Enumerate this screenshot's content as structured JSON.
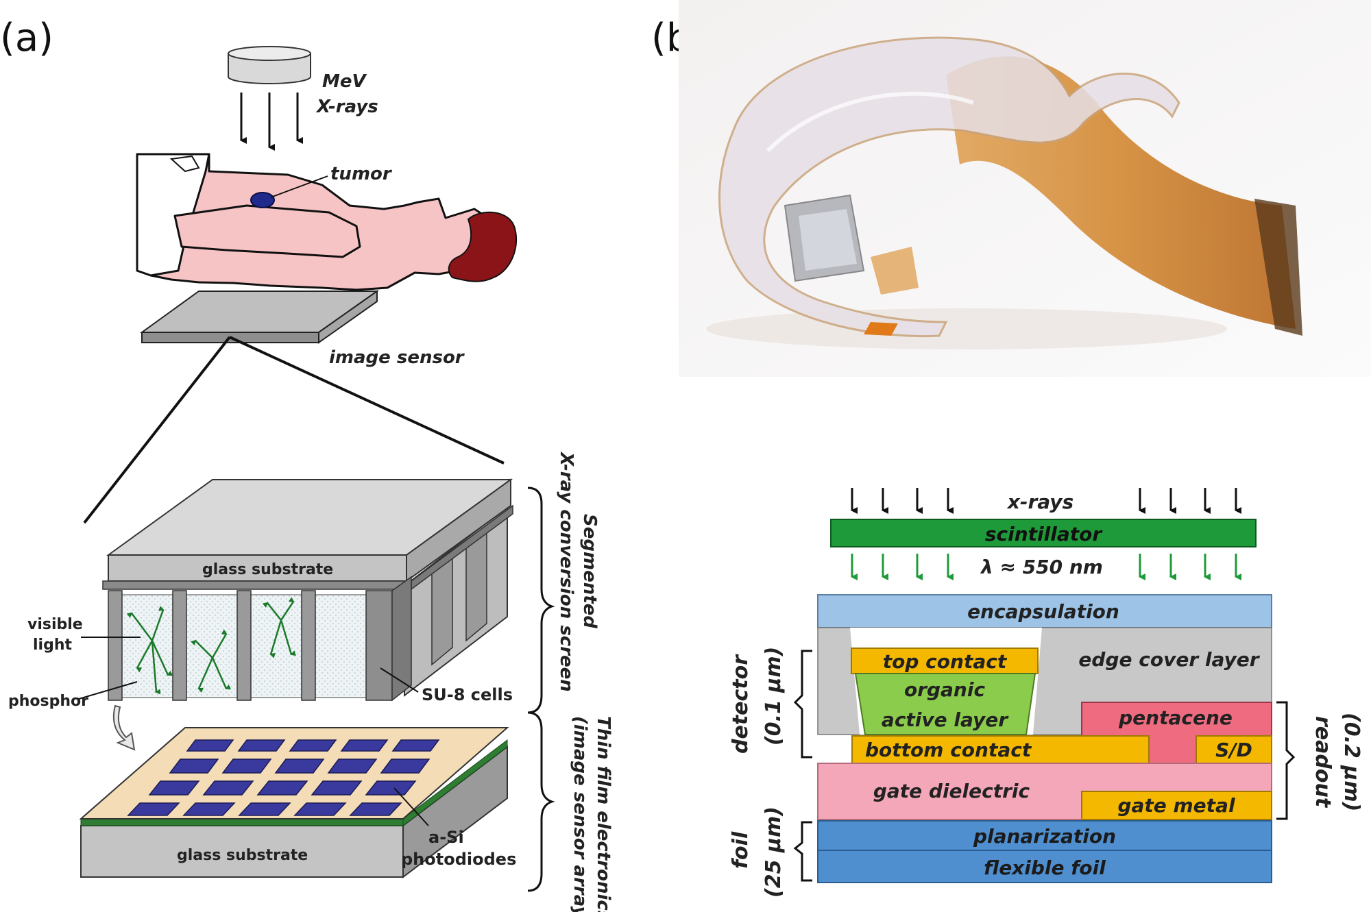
{
  "panel_a": {
    "label": "(a)",
    "source_label_1": "MeV",
    "source_label_2": "X-rays",
    "tumor_label": "tumor",
    "image_sensor_label": "image sensor",
    "top_glass_label": "glass substrate",
    "bottom_glass_label": "glass substrate",
    "visible_light_1": "visible",
    "visible_light_2": "light",
    "phosphor_label": "phosphor",
    "su8_label": "SU-8 cells",
    "asi_label_1": "a-Si",
    "asi_label_2": "photodiodes",
    "conversion_label_1": "Segmented",
    "conversion_label_2": "X-ray conversion screen",
    "thinfilm_label_1": "Thin film electronics",
    "thinfilm_label_2": "(image sensor array)"
  },
  "panel_b": {
    "label": "(b)",
    "xrays": "x-rays",
    "scintillator": "scintillator",
    "wavelength": "λ ≈ 550 nm",
    "encapsulation": "encapsulation",
    "top_contact": "top contact",
    "organic_1": "organic",
    "organic_2": "active layer",
    "edge_cover": "edge cover layer",
    "pentacene": "pentacene",
    "bottom_contact": "bottom contact",
    "sd": "S/D",
    "gate_dielectric": "gate dielectric",
    "gate_metal": "gate metal",
    "planarization": "planarization",
    "flexible_foil": "flexible foil",
    "detector_1": "detector",
    "detector_2": "(0.1 µm)",
    "readout_1": "readout",
    "readout_2": "(0.2 µm)",
    "foil_1": "foil",
    "foil_2": "(25 µm)"
  },
  "colors": {
    "skin": "#f7c4c6",
    "hair": "#8b1418",
    "tumor": "#1f2a8c",
    "photodiode": "#3a3a9e",
    "phosphor_green": "#1a7a2a",
    "scintillator": "#1f9a3a",
    "encapsulation": "#9dc3e6",
    "gold": "#f5b800",
    "organic": "#8ccc4c",
    "pentacene": "#ee6b80",
    "gate_dielectric": "#f4a7b9",
    "planarization": "#4f8fcf",
    "edge_cover": "#c8c8c8"
  }
}
